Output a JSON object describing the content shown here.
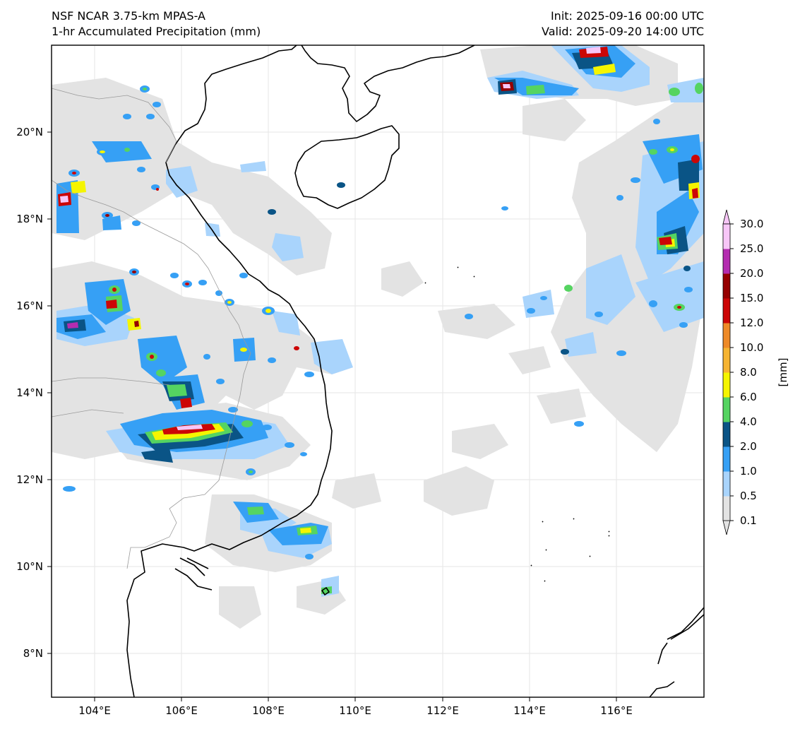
{
  "header": {
    "title_line1": "NSF NCAR 3.75-km MPAS-A",
    "title_line2": "1-hr Accumulated Precipitation (mm)",
    "init": "Init: 2025-09-16 00:00 UTC",
    "valid": "Valid: 2025-09-20 14:00 UTC"
  },
  "axes": {
    "lon_ticks": [
      "104°E",
      "106°E",
      "108°E",
      "110°E",
      "112°E",
      "114°E",
      "116°E"
    ],
    "lat_ticks": [
      "20°N",
      "18°N",
      "16°N",
      "14°N",
      "12°N",
      "10°N",
      "8°N"
    ]
  },
  "colorbar": {
    "unit_label": "[mm]",
    "levels": [
      "0.1",
      "0.5",
      "1.0",
      "2.0",
      "4.0",
      "6.0",
      "8.0",
      "10.0",
      "12.0",
      "15.0",
      "20.0",
      "25.0",
      "30.0"
    ],
    "colors": [
      "#e3e3e3",
      "#a9d4fc",
      "#36a0f5",
      "#0a5486",
      "#55d461",
      "#f5f500",
      "#f6b432",
      "#ee8a28",
      "#cc0606",
      "#960000",
      "#b42cb0",
      "#f7c6f7"
    ]
  },
  "colors": {
    "coast": "#000000",
    "border": "#9a9a9a",
    "grid": "#dcdcdc"
  }
}
